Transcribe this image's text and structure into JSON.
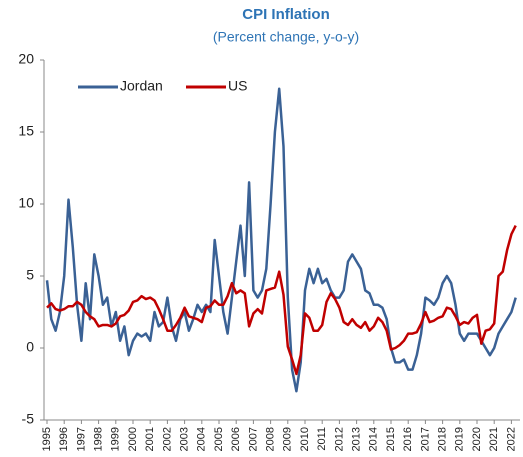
{
  "chart_data": {
    "type": "line",
    "title": "CPI Inflation",
    "subtitle": "(Percent change, y-o-y)",
    "x": [
      1995,
      1995.25,
      1995.5,
      1995.75,
      1996,
      1996.25,
      1996.5,
      1996.75,
      1997,
      1997.25,
      1997.5,
      1997.75,
      1998,
      1998.25,
      1998.5,
      1998.75,
      1999,
      1999.25,
      1999.5,
      1999.75,
      2000,
      2000.25,
      2000.5,
      2000.75,
      2001,
      2001.25,
      2001.5,
      2001.75,
      2002,
      2002.25,
      2002.5,
      2002.75,
      2003,
      2003.25,
      2003.5,
      2003.75,
      2004,
      2004.25,
      2004.5,
      2004.75,
      2005,
      2005.25,
      2005.5,
      2005.75,
      2006,
      2006.25,
      2006.5,
      2006.75,
      2007,
      2007.25,
      2007.5,
      2007.75,
      2008,
      2008.25,
      2008.5,
      2008.75,
      2009,
      2009.25,
      2009.5,
      2009.75,
      2010,
      2010.25,
      2010.5,
      2010.75,
      2011,
      2011.25,
      2011.5,
      2011.75,
      2012,
      2012.25,
      2012.5,
      2012.75,
      2013,
      2013.25,
      2013.5,
      2013.75,
      2014,
      2014.25,
      2014.5,
      2014.75,
      2015,
      2015.25,
      2015.5,
      2015.75,
      2016,
      2016.25,
      2016.5,
      2016.75,
      2017,
      2017.25,
      2017.5,
      2017.75,
      2018,
      2018.25,
      2018.5,
      2018.75,
      2019,
      2019.25,
      2019.5,
      2019.75,
      2020,
      2020.25,
      2020.5,
      2020.75,
      2021,
      2021.25,
      2021.5,
      2021.75,
      2022,
      2022.25
    ],
    "series": [
      {
        "name": "Jordan",
        "color": "#3a6195",
        "values": [
          4.7,
          2,
          1.2,
          2.5,
          5,
          10.3,
          7,
          3,
          0.5,
          4.5,
          2,
          6.5,
          5,
          3,
          3.5,
          1.5,
          2.5,
          0.5,
          1.5,
          -0.5,
          0.5,
          1,
          0.8,
          1,
          0.5,
          2.5,
          1.5,
          1.8,
          3.5,
          1.5,
          0.5,
          2,
          2.5,
          1.2,
          2,
          3,
          2.5,
          3,
          2.5,
          7.5,
          5,
          2.5,
          1,
          3.5,
          6,
          8.5,
          5,
          11.5,
          4,
          3.5,
          4,
          5.5,
          10,
          15,
          18,
          14,
          3.5,
          -1.5,
          -3,
          -1,
          4,
          5.5,
          4.5,
          5.5,
          4.5,
          4.8,
          4,
          3.5,
          3.5,
          4,
          6,
          6.5,
          6,
          5.5,
          4,
          3.8,
          3,
          3,
          2.8,
          2,
          0,
          -1,
          -1,
          -0.8,
          -1.5,
          -1.5,
          -0.5,
          1,
          3.5,
          3.3,
          3,
          3.5,
          4.5,
          5,
          4.5,
          3,
          1,
          0.5,
          1,
          1,
          1,
          0.5,
          0,
          -0.5,
          0,
          1,
          1.5,
          2,
          2.5,
          3.5
        ]
      },
      {
        "name": "US",
        "color": "#c00000",
        "values": [
          2.8,
          3.1,
          2.7,
          2.6,
          2.7,
          2.9,
          2.9,
          3.2,
          3,
          2.5,
          2.2,
          2,
          1.5,
          1.6,
          1.6,
          1.5,
          1.7,
          2.2,
          2.3,
          2.6,
          3.2,
          3.3,
          3.6,
          3.4,
          3.5,
          3.3,
          2.7,
          2,
          1.2,
          1.2,
          1.6,
          2.1,
          2.8,
          2.2,
          2.1,
          2,
          1.8,
          2.8,
          2.9,
          3.3,
          3,
          3,
          3.6,
          4.5,
          3.8,
          4,
          3.8,
          1.5,
          2.4,
          2.7,
          2.4,
          4,
          4.1,
          4.2,
          5.3,
          3.7,
          0.1,
          -0.8,
          -1.8,
          -0.5,
          2.4,
          2.1,
          1.2,
          1.2,
          1.6,
          3.2,
          3.8,
          3.4,
          2.8,
          1.8,
          1.6,
          2,
          1.6,
          1.4,
          1.8,
          1.2,
          1.5,
          2.1,
          1.8,
          1.2,
          -0.1,
          0,
          0.2,
          0.5,
          1,
          1,
          1.1,
          1.7,
          2.5,
          1.8,
          1.9,
          2.1,
          2.2,
          2.8,
          2.7,
          2.2,
          1.6,
          1.8,
          1.7,
          2.1,
          2.3,
          0.3,
          1.2,
          1.3,
          1.7,
          5,
          5.3,
          6.8,
          7.9,
          8.5
        ]
      }
    ],
    "xlim": [
      1995,
      2022.5
    ],
    "xticks": [
      1995,
      1996,
      1997,
      1998,
      1999,
      2000,
      2001,
      2002,
      2003,
      2004,
      2005,
      2006,
      2007,
      2008,
      2009,
      2010,
      2011,
      2012,
      2013,
      2014,
      2015,
      2016,
      2017,
      2018,
      2019,
      2020,
      2021,
      2022
    ],
    "ylim": [
      -5,
      20
    ],
    "yticks": [
      -5,
      0,
      5,
      10,
      15,
      20
    ],
    "grid": false,
    "legend": "top-left"
  }
}
